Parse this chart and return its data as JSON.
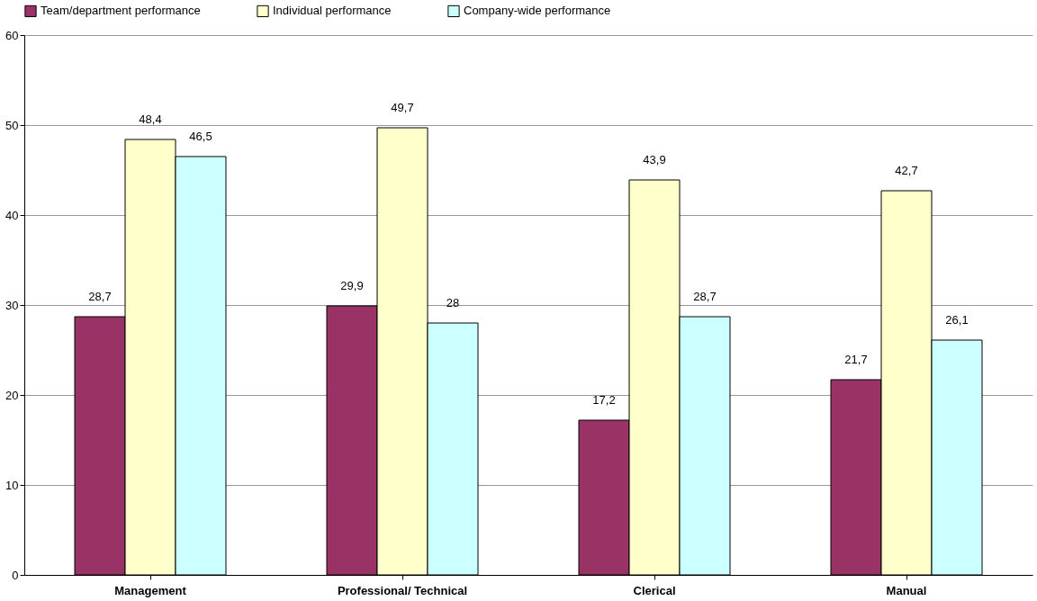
{
  "chart_data": {
    "type": "bar",
    "categories": [
      "Management",
      "Professional/ Technical",
      "Clerical",
      "Manual"
    ],
    "series": [
      {
        "name": "Team/department performance",
        "color": "#993366",
        "values": [
          28.7,
          29.9,
          17.2,
          21.7
        ],
        "value_labels": [
          "28,7",
          "29,9",
          "17,2",
          "21,7"
        ]
      },
      {
        "name": "Individual performance",
        "color": "#ffffcc",
        "values": [
          48.4,
          49.7,
          43.9,
          42.7
        ],
        "value_labels": [
          "48,4",
          "49,7",
          "43,9",
          "42,7"
        ]
      },
      {
        "name": "Company-wide performance",
        "color": "#ccffff",
        "values": [
          46.5,
          28,
          28.7,
          26.1
        ],
        "value_labels": [
          "46,5",
          "28",
          "28,7",
          "26,1"
        ]
      }
    ],
    "ylim": [
      0,
      60
    ],
    "yticks": [
      0,
      10,
      20,
      30,
      40,
      50,
      60
    ],
    "grid": "y",
    "legend": "top"
  }
}
